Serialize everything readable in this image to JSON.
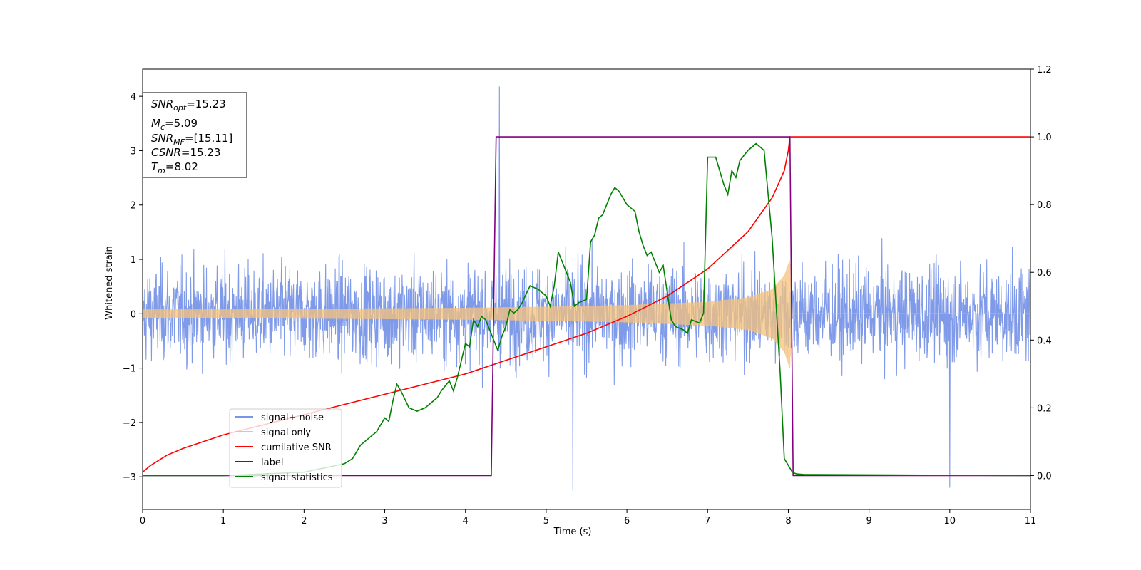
{
  "chart_data": {
    "type": "line",
    "xlabel": "Time (s)",
    "ylabel": "Whitened strain",
    "xlim": [
      0,
      11
    ],
    "ylim_left": [
      -3.6,
      4.5
    ],
    "ylim_right": [
      -0.1,
      1.2
    ],
    "grid": false,
    "legend_placement": "lower-left",
    "x_ticks": [
      "0",
      "1",
      "2",
      "3",
      "4",
      "5",
      "6",
      "7",
      "8",
      "9",
      "10",
      "11"
    ],
    "y_left_ticks": [
      "4",
      "3",
      "2",
      "1",
      "0",
      "−1",
      "−2",
      "−3"
    ],
    "y_right_ticks": [
      "1.2",
      "1.0",
      "0.8",
      "0.6",
      "0.4",
      "0.2",
      "0.0"
    ],
    "annotation": {
      "snr_opt": {
        "sym": "SNR",
        "sub": "opt",
        "value": "=15.23"
      },
      "mc": {
        "sym": "M",
        "sub": "c",
        "value": "=5.09"
      },
      "snr_mf": {
        "sym": "SNR",
        "sub": "MF",
        "value": "=[15.11]"
      },
      "csnr": {
        "sym": "CSNR",
        "value": "=15.23"
      },
      "tm": {
        "sym": "T",
        "sub": "m",
        "value": "=8.02"
      }
    },
    "series": [
      {
        "name": "signal+ noise",
        "axis": "left",
        "color": "#7895e8",
        "noise_amplitude_envelope": 2.6,
        "notable_spikes": [
          {
            "x": 4.42,
            "y": 4.18
          },
          {
            "x": 5.33,
            "y": -3.25
          },
          {
            "x": 10.0,
            "y": -3.2
          }
        ]
      },
      {
        "name": "signal only",
        "axis": "left",
        "color": "#f5c27a",
        "envelope_x": [
          0,
          1,
          2,
          3,
          4,
          5,
          6,
          7,
          7.5,
          7.8,
          7.95,
          8.02,
          8.05,
          11
        ],
        "envelope_y": [
          0.08,
          0.08,
          0.09,
          0.1,
          0.11,
          0.13,
          0.16,
          0.22,
          0.3,
          0.45,
          0.7,
          1.0,
          0,
          0
        ]
      },
      {
        "name": "cumilative SNR",
        "axis": "right",
        "color": "#ff0000",
        "x": [
          0,
          0.1,
          0.3,
          0.5,
          1.0,
          1.5,
          2.0,
          2.5,
          3.0,
          3.5,
          4.0,
          4.5,
          5.0,
          5.5,
          6.0,
          6.5,
          7.0,
          7.5,
          7.8,
          7.95,
          8.0,
          8.02,
          8.05,
          11
        ],
        "y": [
          0.01,
          0.03,
          0.06,
          0.08,
          0.12,
          0.15,
          0.18,
          0.21,
          0.24,
          0.27,
          0.3,
          0.34,
          0.38,
          0.42,
          0.47,
          0.53,
          0.61,
          0.72,
          0.82,
          0.9,
          0.96,
          1.0,
          1.0,
          1.0
        ]
      },
      {
        "name": "label",
        "axis": "right",
        "color": "#800080",
        "x": [
          0,
          4.32,
          4.38,
          8.02,
          8.06,
          11
        ],
        "y": [
          0,
          0,
          1,
          1,
          0,
          0
        ]
      },
      {
        "name": "signal statistics",
        "axis": "right",
        "color": "#008000",
        "x": [
          0,
          1.0,
          1.5,
          2.0,
          2.3,
          2.5,
          2.6,
          2.7,
          2.8,
          2.9,
          3.0,
          3.05,
          3.1,
          3.15,
          3.2,
          3.3,
          3.4,
          3.5,
          3.6,
          3.65,
          3.7,
          3.8,
          3.85,
          3.9,
          4.0,
          4.05,
          4.1,
          4.15,
          4.2,
          4.25,
          4.3,
          4.35,
          4.4,
          4.45,
          4.5,
          4.55,
          4.6,
          4.65,
          4.7,
          4.8,
          4.9,
          5.0,
          5.05,
          5.1,
          5.15,
          5.25,
          5.3,
          5.35,
          5.4,
          5.5,
          5.55,
          5.6,
          5.65,
          5.7,
          5.75,
          5.8,
          5.85,
          5.9,
          6.0,
          6.1,
          6.15,
          6.2,
          6.25,
          6.3,
          6.4,
          6.45,
          6.5,
          6.55,
          6.6,
          6.7,
          6.75,
          6.8,
          6.9,
          6.95,
          7.0,
          7.1,
          7.2,
          7.25,
          7.3,
          7.35,
          7.4,
          7.5,
          7.6,
          7.65,
          7.7,
          7.8,
          7.9,
          7.95,
          8.0,
          8.05,
          8.1,
          8.2,
          11
        ],
        "y": [
          0,
          0,
          0.005,
          0.01,
          0.025,
          0.035,
          0.05,
          0.09,
          0.11,
          0.13,
          0.17,
          0.16,
          0.22,
          0.27,
          0.25,
          0.2,
          0.19,
          0.2,
          0.22,
          0.23,
          0.25,
          0.28,
          0.25,
          0.29,
          0.39,
          0.38,
          0.46,
          0.44,
          0.47,
          0.46,
          0.43,
          0.4,
          0.37,
          0.41,
          0.44,
          0.49,
          0.48,
          0.49,
          0.51,
          0.56,
          0.55,
          0.53,
          0.5,
          0.56,
          0.66,
          0.6,
          0.57,
          0.5,
          0.51,
          0.52,
          0.69,
          0.71,
          0.76,
          0.77,
          0.8,
          0.83,
          0.85,
          0.84,
          0.8,
          0.78,
          0.72,
          0.68,
          0.65,
          0.66,
          0.6,
          0.62,
          0.54,
          0.46,
          0.44,
          0.43,
          0.42,
          0.46,
          0.45,
          0.48,
          0.94,
          0.94,
          0.86,
          0.83,
          0.9,
          0.88,
          0.93,
          0.96,
          0.98,
          0.97,
          0.96,
          0.7,
          0.3,
          0.05,
          0.03,
          0.01,
          0.005,
          0.003,
          0
        ]
      }
    ]
  }
}
